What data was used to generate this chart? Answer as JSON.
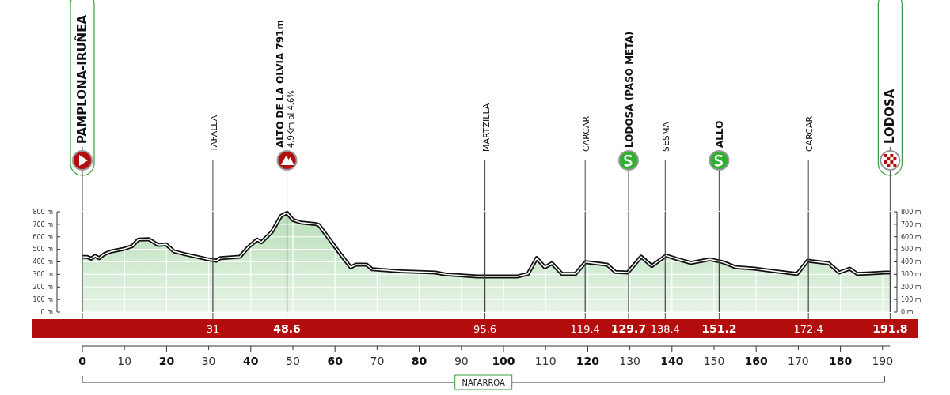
{
  "chart_data": {
    "type": "area",
    "x": [
      0,
      1.1,
      2.1,
      3,
      4,
      5.2,
      6.8,
      9.9,
      11.8,
      13.3,
      15.8,
      18,
      19.9,
      21.8,
      24.3,
      29.9,
      31.8,
      32.8,
      37.4,
      39.3,
      41.5,
      42.5,
      45,
      47.2,
      48.6,
      50,
      51.9,
      55.3,
      56.2,
      61.3,
      63.7,
      65,
      67.5,
      68.8,
      75.7,
      83.8,
      86.3,
      93.8,
      103.2,
      105.8,
      107.9,
      109.8,
      111.5,
      113.9,
      117.1,
      119.5,
      124.6,
      126.6,
      129.5,
      132.7,
      135.2,
      138.6,
      141.5,
      144.5,
      149,
      152,
      155.2,
      159.6,
      164.6,
      169.7,
      172.2,
      177.2,
      179.7,
      182.2,
      184,
      187.2,
      190.6,
      191.8
    ],
    "series": [
      {
        "color": "#b9dfb9",
        "values": [
          440,
          440,
          426,
          447,
          430,
          462,
          483,
          504,
          525,
          578,
          581,
          535,
          540,
          483,
          462,
          420,
          409,
          430,
          441,
          514,
          578,
          556,
          640,
          767,
          791,
          735,
          714,
          703,
          693,
          462,
          357,
          378,
          378,
          342,
          325,
          315,
          300,
          283,
          283,
          304,
          430,
          357,
          389,
          304,
          304,
          399,
          378,
          319,
          315,
          441,
          367,
          451,
          420,
          392,
          420,
          399,
          357,
          346,
          325,
          304,
          409,
          389,
          315,
          346,
          304,
          309,
          315,
          315
        ]
      }
    ],
    "xlim": [
      0,
      191.8
    ],
    "xticks": [
      0,
      10,
      20,
      30,
      40,
      50,
      60,
      70,
      80,
      90,
      100,
      110,
      120,
      130,
      140,
      150,
      160,
      170,
      180,
      190
    ],
    "ylim": [
      0,
      800
    ],
    "yticks": [
      {
        "value": 0,
        "label": "0 m"
      },
      {
        "value": 100,
        "label": "100 m"
      },
      {
        "value": 200,
        "label": "200 m"
      },
      {
        "value": 300,
        "label": "300 m"
      },
      {
        "value": 400,
        "label": "400 m"
      },
      {
        "value": 500,
        "label": "500 m"
      },
      {
        "value": 600,
        "label": "600 m"
      },
      {
        "value": 700,
        "label": "700 m"
      },
      {
        "value": 800,
        "label": "800 m"
      }
    ],
    "y2lim": [
      0,
      800
    ],
    "y2ticks": [
      {
        "value": 0,
        "label": "0 m"
      },
      {
        "value": 100,
        "label": "100 m"
      },
      {
        "value": 200,
        "label": "200 m"
      },
      {
        "value": 300,
        "label": "300 m"
      },
      {
        "value": 400,
        "label": "400 m"
      },
      {
        "value": 500,
        "label": "500 m"
      },
      {
        "value": 600,
        "label": "600 m"
      },
      {
        "value": 700,
        "label": "700 m"
      },
      {
        "value": 800,
        "label": "800 m"
      }
    ],
    "grid": true,
    "legend": false,
    "ref_lines": [
      {
        "axis": "x",
        "value": 0,
        "label": "PAMPLONA-IRUÑEA"
      },
      {
        "axis": "x",
        "value": 31,
        "label": "TAFALLA"
      },
      {
        "axis": "x",
        "value": 48.6,
        "label": "ALTO DE LA OLVIA 791m\n4.9Km al 4.6%"
      },
      {
        "axis": "x",
        "value": 95.6,
        "label": "MARTZILLA"
      },
      {
        "axis": "x",
        "value": 119.4,
        "label": "CARCAR"
      },
      {
        "axis": "x",
        "value": 129.7,
        "label": "LODOSA (PASO META)"
      },
      {
        "axis": "x",
        "value": 138.4,
        "label": "SESMA"
      },
      {
        "axis": "x",
        "value": 151.2,
        "label": "ALLO"
      },
      {
        "axis": "x",
        "value": 172.4,
        "label": "CARCAR"
      },
      {
        "axis": "x",
        "value": 191.8,
        "label": "LODOSA"
      }
    ],
    "annotations": [
      "NAFARROA",
      "31",
      "48.6",
      "95.6",
      "119.4",
      "129.7",
      "138.4",
      "151.2",
      "172.4",
      "191.8"
    ]
  }
}
